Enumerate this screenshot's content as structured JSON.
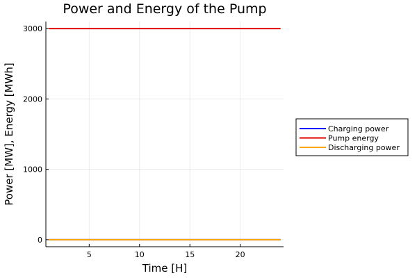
{
  "chart_data": {
    "type": "line",
    "title": "Power and Energy of the Pump",
    "xlabel": "Time [H]",
    "ylabel": "Power [MW], Energy [MWh]",
    "xlim": [
      0.7,
      24.3
    ],
    "ylim": [
      -100,
      3100
    ],
    "xticks": [
      5,
      10,
      15,
      20
    ],
    "yticks": [
      0,
      1000,
      2000,
      3000
    ],
    "grid": true,
    "legend_position": "outside-right",
    "x": [
      1,
      2,
      3,
      4,
      5,
      6,
      7,
      8,
      9,
      10,
      11,
      12,
      13,
      14,
      15,
      16,
      17,
      18,
      19,
      20,
      21,
      22,
      23,
      24
    ],
    "series": [
      {
        "name": "Charging power",
        "color": "#0000ff",
        "values": [
          0,
          0,
          0,
          0,
          0,
          0,
          0,
          0,
          0,
          0,
          0,
          0,
          0,
          0,
          0,
          0,
          0,
          0,
          0,
          0,
          0,
          0,
          0,
          0
        ]
      },
      {
        "name": "Pump energy",
        "color": "#e00000",
        "values": [
          3000,
          3000,
          3000,
          3000,
          3000,
          3000,
          3000,
          3000,
          3000,
          3000,
          3000,
          3000,
          3000,
          3000,
          3000,
          3000,
          3000,
          3000,
          3000,
          3000,
          3000,
          3000,
          3000,
          3000
        ]
      },
      {
        "name": "Discharging power",
        "color": "#ffa500",
        "values": [
          0,
          0,
          0,
          0,
          0,
          0,
          0,
          0,
          0,
          0,
          0,
          0,
          0,
          0,
          0,
          0,
          0,
          0,
          0,
          0,
          0,
          0,
          0,
          0
        ]
      }
    ]
  }
}
